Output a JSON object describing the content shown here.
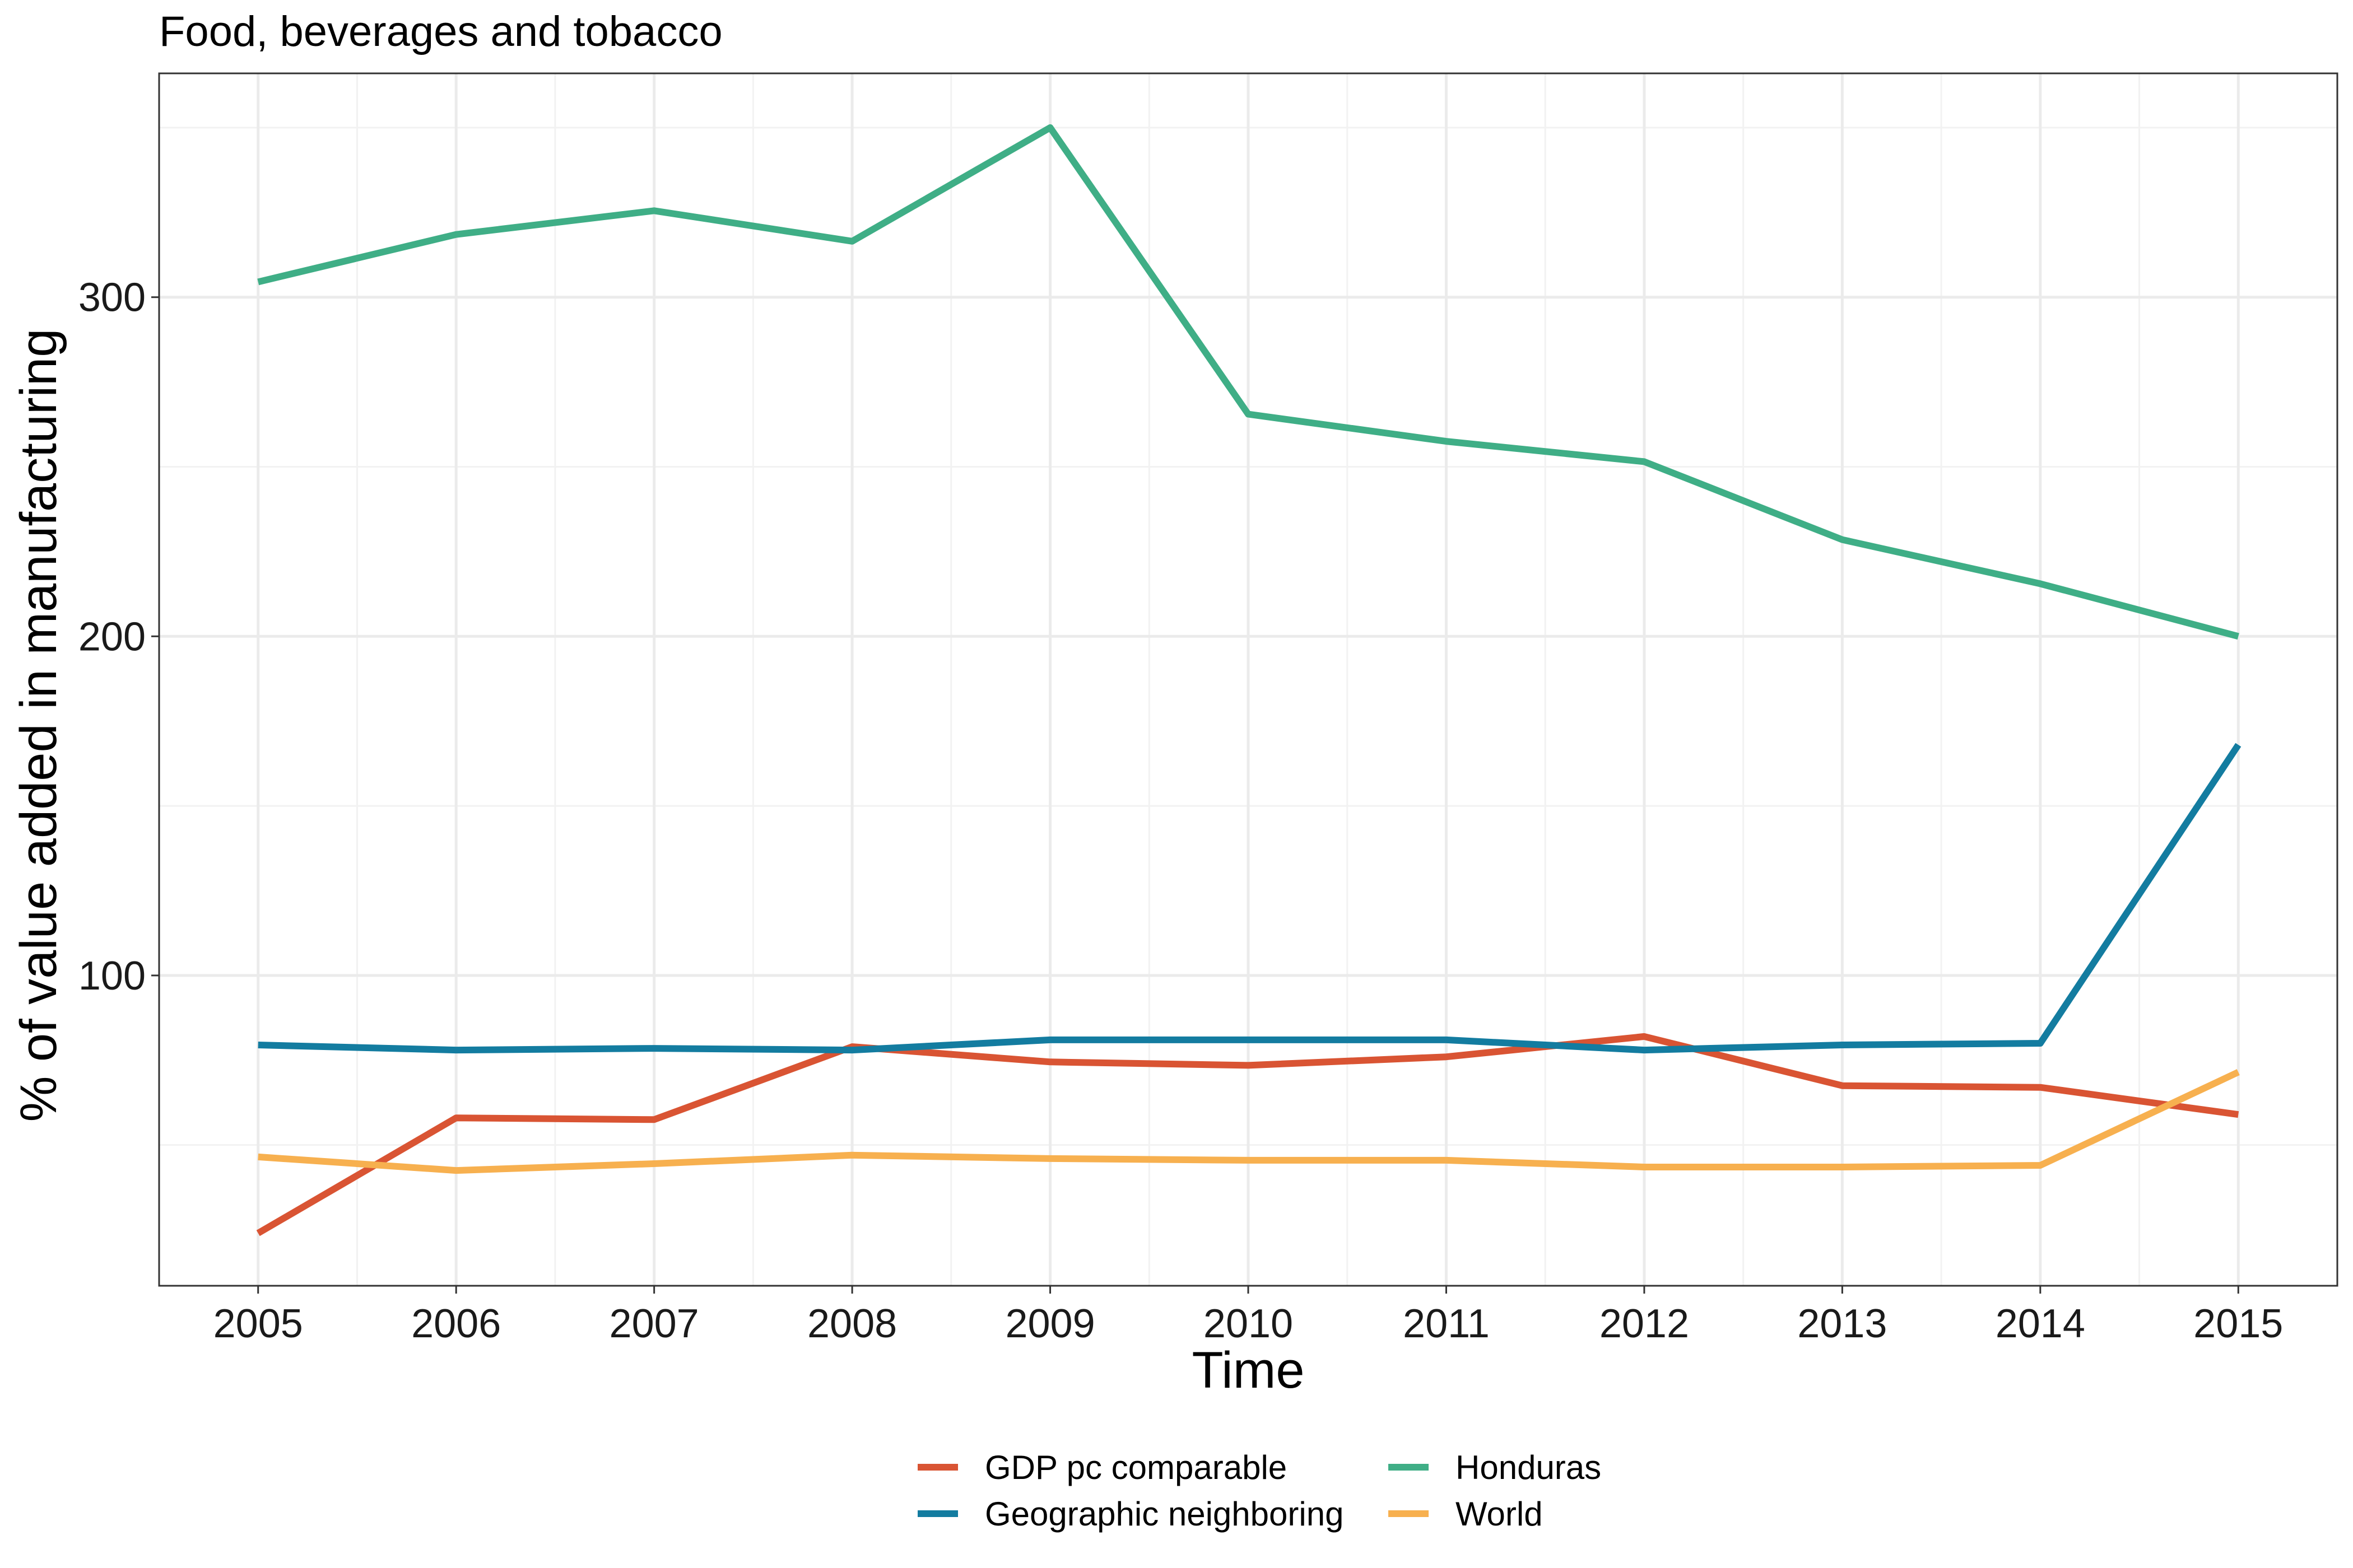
{
  "chart_data": {
    "type": "line",
    "title": "Food, beverages and tobacco",
    "xlabel": "Time",
    "ylabel": "% of value added in manufacturing",
    "x": [
      2005,
      2006,
      2007,
      2008,
      2009,
      2010,
      2011,
      2012,
      2013,
      2014,
      2015
    ],
    "xlim": [
      2004.5,
      2015.5
    ],
    "ylim": [
      8.5,
      366
    ],
    "y_ticks": [
      100,
      200,
      300
    ],
    "grid": true,
    "legend_position": "bottom",
    "series": [
      {
        "name": "GDP pc comparable",
        "color": "#d95433",
        "values": [
          24,
          58,
          57.5,
          79,
          74.5,
          73.5,
          76,
          82,
          67.5,
          67,
          59
        ]
      },
      {
        "name": "Geographic neighboring",
        "color": "#137ca0",
        "values": [
          79.5,
          78,
          78.5,
          78,
          81,
          81,
          81,
          78,
          79.5,
          80,
          168
        ]
      },
      {
        "name": "Honduras",
        "color": "#3fae86",
        "values": [
          304.5,
          318.5,
          325.5,
          316.5,
          350,
          265.5,
          257.5,
          251.5,
          228.5,
          215.5,
          200
        ]
      },
      {
        "name": "World",
        "color": "#f7b04f",
        "values": [
          46.5,
          42.5,
          44.5,
          47,
          46,
          45.5,
          45.5,
          43.5,
          43.5,
          44,
          71.5
        ]
      }
    ]
  }
}
